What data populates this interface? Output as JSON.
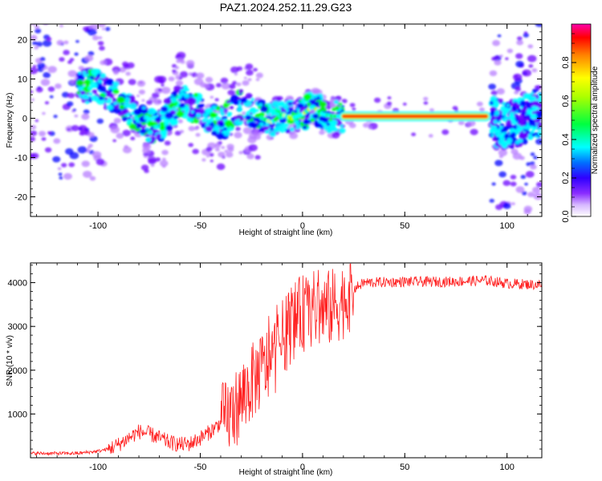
{
  "title": "PAZ1.2024.252.11.29.G23",
  "chart_data": [
    {
      "type": "heatmap",
      "xlabel": "Height of straight line (km)",
      "ylabel": "Frequency (Hz)",
      "xlim": [
        -133,
        117
      ],
      "ylim": [
        -25,
        24
      ],
      "xticks": [
        -100,
        -50,
        0,
        50,
        100
      ],
      "yticks": [
        -20,
        -10,
        0,
        10,
        20
      ],
      "colorbar": {
        "label": "Normalized spectral amplitude",
        "range": [
          0,
          1
        ],
        "ticks": [
          0.0,
          0.2,
          0.4,
          0.6,
          0.8
        ],
        "colors": [
          "#ffffff",
          "#b77cff",
          "#6a00ff",
          "#0000ff",
          "#00ffff",
          "#00ff00",
          "#ffff00",
          "#ff8000",
          "#ff0000",
          "#ff00aa"
        ]
      },
      "ridge": [
        {
          "x": -100,
          "y": 8
        },
        {
          "x": -95,
          "y": 6
        },
        {
          "x": -90,
          "y": 5
        },
        {
          "x": -85,
          "y": 2
        },
        {
          "x": -80,
          "y": 0
        },
        {
          "x": -75,
          "y": -2
        },
        {
          "x": -70,
          "y": -2
        },
        {
          "x": -65,
          "y": 1
        },
        {
          "x": -60,
          "y": 5
        },
        {
          "x": -55,
          "y": 3
        },
        {
          "x": -50,
          "y": 2
        },
        {
          "x": -45,
          "y": 0
        },
        {
          "x": -40,
          "y": -2
        },
        {
          "x": -35,
          "y": 1
        },
        {
          "x": -30,
          "y": 3
        },
        {
          "x": -25,
          "y": 2
        },
        {
          "x": -20,
          "y": 0
        },
        {
          "x": -15,
          "y": -1
        },
        {
          "x": -10,
          "y": 1
        },
        {
          "x": -5,
          "y": 0
        },
        {
          "x": 0,
          "y": 1
        },
        {
          "x": 5,
          "y": 3
        },
        {
          "x": 10,
          "y": 1
        },
        {
          "x": 15,
          "y": 0.5
        },
        {
          "x": 20,
          "y": 0.5
        },
        {
          "x": 50,
          "y": 0.5
        },
        {
          "x": 92,
          "y": 0.5
        },
        {
          "x": 95,
          "y": -1
        },
        {
          "x": 100,
          "y": -2
        },
        {
          "x": 105,
          "y": -1
        },
        {
          "x": 110,
          "y": 0
        },
        {
          "x": 117,
          "y": 2
        }
      ]
    },
    {
      "type": "line",
      "xlabel": "Height of straight line (km)",
      "ylabel": "SNR (10 * v/v)",
      "xlim": [
        -133,
        117
      ],
      "ylim": [
        0,
        4450
      ],
      "xticks": [
        -100,
        -50,
        0,
        50,
        100
      ],
      "yticks": [
        1000,
        2000,
        3000,
        4000
      ],
      "series": [
        {
          "color": "#ff2020",
          "envelope": [
            {
              "x": -133,
              "y": 100
            },
            {
              "x": -110,
              "y": 100
            },
            {
              "x": -100,
              "y": 150
            },
            {
              "x": -95,
              "y": 200
            },
            {
              "x": -90,
              "y": 300
            },
            {
              "x": -85,
              "y": 450
            },
            {
              "x": -80,
              "y": 600
            },
            {
              "x": -75,
              "y": 550
            },
            {
              "x": -70,
              "y": 450
            },
            {
              "x": -65,
              "y": 350
            },
            {
              "x": -60,
              "y": 300
            },
            {
              "x": -55,
              "y": 320
            },
            {
              "x": -50,
              "y": 450
            },
            {
              "x": -45,
              "y": 600
            },
            {
              "x": -40,
              "y": 800
            },
            {
              "x": -35,
              "y": 1000
            },
            {
              "x": -30,
              "y": 1300
            },
            {
              "x": -25,
              "y": 1700
            },
            {
              "x": -20,
              "y": 2000
            },
            {
              "x": -15,
              "y": 2200
            },
            {
              "x": -10,
              "y": 2700
            },
            {
              "x": -5,
              "y": 3100
            },
            {
              "x": 0,
              "y": 3300
            },
            {
              "x": 5,
              "y": 3400
            },
            {
              "x": 10,
              "y": 3350
            },
            {
              "x": 15,
              "y": 3450
            },
            {
              "x": 20,
              "y": 3600
            },
            {
              "x": 25,
              "y": 3850
            },
            {
              "x": 30,
              "y": 4000
            },
            {
              "x": 50,
              "y": 4020
            },
            {
              "x": 70,
              "y": 4020
            },
            {
              "x": 90,
              "y": 4050
            },
            {
              "x": 100,
              "y": 3980
            },
            {
              "x": 117,
              "y": 3950
            }
          ]
        }
      ]
    }
  ]
}
